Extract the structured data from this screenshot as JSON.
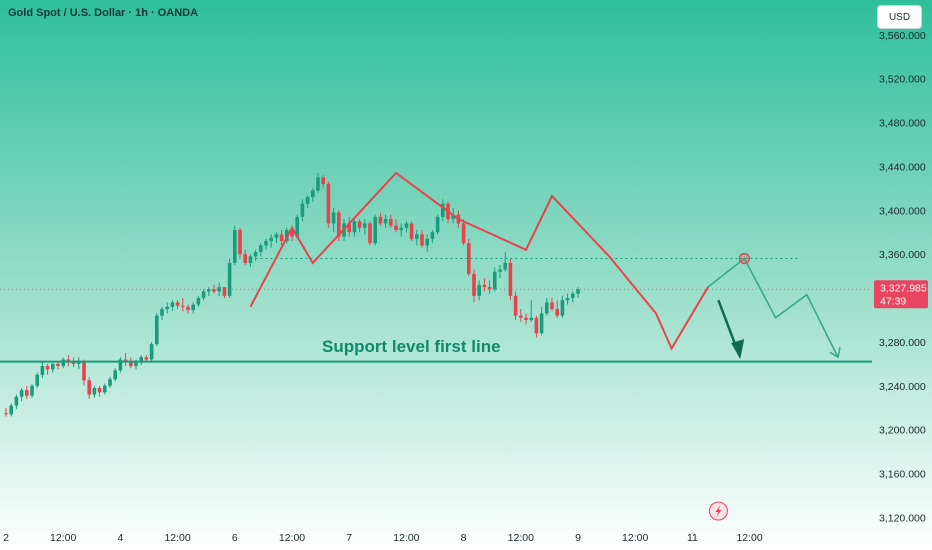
{
  "header": {
    "title": "Gold Spot / U.S. Dollar · 1h · OANDA"
  },
  "currency_button": {
    "label": "USD"
  },
  "price_tag": {
    "price": "3,327.985",
    "countdown": "47:39",
    "bg_color": "#e84560"
  },
  "annotation": {
    "support_text": "Support level first line"
  },
  "colors": {
    "bg_top": "#2ebf9a",
    "bg_bottom": "#ffffff",
    "up": "#1a9c7c",
    "down": "#e8424f",
    "zigzag_red": "#e8424f",
    "projection": "#3aa88e",
    "support_line": "#1a9c7c"
  },
  "icons": {
    "lightning": "lightning-icon"
  },
  "chart_data": {
    "type": "candlestick",
    "title": "Gold Spot / U.S. Dollar · 1h · OANDA",
    "y_ticks": [
      "3,560.000",
      "3,520.000",
      "3,480.000",
      "3,440.000",
      "3,400.000",
      "3,360.000",
      "3,280.000",
      "3,240.000",
      "3,200.000",
      "3,160.000",
      "3,120.000"
    ],
    "y_tick_values": [
      3560,
      3520,
      3480,
      3440,
      3400,
      3360,
      3280,
      3240,
      3200,
      3160,
      3120
    ],
    "ylim": [
      3114,
      3568
    ],
    "x_ticks": [
      "2",
      "12:00",
      "4",
      "12:00",
      "6",
      "12:00",
      "7",
      "12:00",
      "8",
      "12:00",
      "9",
      "12:00",
      "11",
      "12:00"
    ],
    "x_tick_index": [
      0,
      11,
      22,
      33,
      44,
      55,
      66,
      77,
      88,
      99,
      110,
      121,
      132,
      143
    ],
    "last_price": 3327.985,
    "support_level": 3262,
    "dotted_resistance": 3356,
    "candles": [
      [
        3215,
        3220,
        3212,
        3214
      ],
      [
        3214,
        3224,
        3212,
        3222
      ],
      [
        3222,
        3232,
        3219,
        3230
      ],
      [
        3230,
        3238,
        3226,
        3236
      ],
      [
        3236,
        3240,
        3228,
        3231
      ],
      [
        3231,
        3242,
        3229,
        3240
      ],
      [
        3240,
        3252,
        3238,
        3250
      ],
      [
        3250,
        3262,
        3247,
        3258
      ],
      [
        3258,
        3260,
        3250,
        3255
      ],
      [
        3255,
        3262,
        3252,
        3260
      ],
      [
        3260,
        3263,
        3255,
        3258
      ],
      [
        3258,
        3266,
        3256,
        3264
      ],
      [
        3264,
        3268,
        3258,
        3262
      ],
      [
        3262,
        3266,
        3257,
        3260
      ],
      [
        3260,
        3266,
        3255,
        3263
      ],
      [
        3263,
        3264,
        3240,
        3245
      ],
      [
        3245,
        3248,
        3228,
        3232
      ],
      [
        3232,
        3240,
        3229,
        3238
      ],
      [
        3238,
        3240,
        3230,
        3234
      ],
      [
        3234,
        3242,
        3232,
        3240
      ],
      [
        3240,
        3248,
        3238,
        3246
      ],
      [
        3246,
        3256,
        3244,
        3254
      ],
      [
        3254,
        3266,
        3252,
        3264
      ],
      [
        3264,
        3270,
        3258,
        3262
      ],
      [
        3262,
        3266,
        3256,
        3258
      ],
      [
        3258,
        3264,
        3255,
        3262
      ],
      [
        3262,
        3268,
        3259,
        3266
      ],
      [
        3266,
        3268,
        3262,
        3264
      ],
      [
        3264,
        3280,
        3262,
        3278
      ],
      [
        3278,
        3306,
        3276,
        3304
      ],
      [
        3304,
        3312,
        3300,
        3310
      ],
      [
        3310,
        3316,
        3306,
        3312
      ],
      [
        3312,
        3318,
        3308,
        3316
      ],
      [
        3316,
        3318,
        3310,
        3313
      ],
      [
        3313,
        3320,
        3308,
        3312
      ],
      [
        3312,
        3314,
        3306,
        3309
      ],
      [
        3309,
        3316,
        3306,
        3314
      ],
      [
        3314,
        3322,
        3312,
        3320
      ],
      [
        3320,
        3328,
        3318,
        3326
      ],
      [
        3326,
        3330,
        3322,
        3328
      ],
      [
        3328,
        3332,
        3324,
        3326
      ],
      [
        3326,
        3334,
        3322,
        3330
      ],
      [
        3330,
        3328,
        3320,
        3322
      ],
      [
        3322,
        3356,
        3320,
        3352
      ],
      [
        3352,
        3386,
        3350,
        3382
      ],
      [
        3382,
        3384,
        3356,
        3360
      ],
      [
        3360,
        3364,
        3350,
        3352
      ],
      [
        3352,
        3360,
        3348,
        3358
      ],
      [
        3358,
        3364,
        3354,
        3362
      ],
      [
        3362,
        3370,
        3358,
        3368
      ],
      [
        3368,
        3374,
        3364,
        3372
      ],
      [
        3372,
        3378,
        3366,
        3375
      ],
      [
        3375,
        3380,
        3370,
        3378
      ],
      [
        3378,
        3382,
        3368,
        3372
      ],
      [
        3372,
        3384,
        3370,
        3382
      ],
      [
        3382,
        3386,
        3372,
        3376
      ],
      [
        3376,
        3396,
        3374,
        3394
      ],
      [
        3394,
        3410,
        3390,
        3406
      ],
      [
        3406,
        3414,
        3402,
        3412
      ],
      [
        3412,
        3420,
        3408,
        3418
      ],
      [
        3418,
        3434,
        3416,
        3430
      ],
      [
        3430,
        3432,
        3420,
        3424
      ],
      [
        3424,
        3426,
        3384,
        3388
      ],
      [
        3388,
        3402,
        3380,
        3398
      ],
      [
        3398,
        3400,
        3372,
        3376
      ],
      [
        3376,
        3392,
        3372,
        3388
      ],
      [
        3388,
        3394,
        3376,
        3380
      ],
      [
        3380,
        3392,
        3376,
        3390
      ],
      [
        3390,
        3392,
        3380,
        3384
      ],
      [
        3384,
        3392,
        3378,
        3388
      ],
      [
        3388,
        3390,
        3368,
        3370
      ],
      [
        3370,
        3396,
        3368,
        3394
      ],
      [
        3394,
        3398,
        3386,
        3388
      ],
      [
        3388,
        3396,
        3384,
        3392
      ],
      [
        3392,
        3396,
        3384,
        3386
      ],
      [
        3386,
        3392,
        3380,
        3382
      ],
      [
        3382,
        3388,
        3376,
        3384
      ],
      [
        3384,
        3390,
        3380,
        3388
      ],
      [
        3388,
        3390,
        3372,
        3374
      ],
      [
        3374,
        3382,
        3368,
        3378
      ],
      [
        3378,
        3382,
        3366,
        3368
      ],
      [
        3368,
        3378,
        3362,
        3374
      ],
      [
        3374,
        3382,
        3370,
        3380
      ],
      [
        3380,
        3396,
        3378,
        3394
      ],
      [
        3394,
        3410,
        3390,
        3406
      ],
      [
        3406,
        3408,
        3388,
        3392
      ],
      [
        3392,
        3402,
        3388,
        3396
      ],
      [
        3396,
        3400,
        3384,
        3388
      ],
      [
        3388,
        3392,
        3368,
        3370
      ],
      [
        3370,
        3374,
        3340,
        3342
      ],
      [
        3342,
        3346,
        3316,
        3322
      ],
      [
        3322,
        3336,
        3318,
        3332
      ],
      [
        3332,
        3338,
        3326,
        3330
      ],
      [
        3330,
        3336,
        3324,
        3328
      ],
      [
        3328,
        3348,
        3326,
        3344
      ],
      [
        3344,
        3350,
        3338,
        3346
      ],
      [
        3346,
        3362,
        3344,
        3352
      ],
      [
        3352,
        3356,
        3318,
        3322
      ],
      [
        3322,
        3326,
        3300,
        3304
      ],
      [
        3304,
        3310,
        3298,
        3302
      ],
      [
        3302,
        3306,
        3296,
        3300
      ],
      [
        3300,
        3318,
        3298,
        3302
      ],
      [
        3302,
        3304,
        3284,
        3288
      ],
      [
        3288,
        3312,
        3286,
        3306
      ],
      [
        3306,
        3320,
        3304,
        3316
      ],
      [
        3316,
        3320,
        3308,
        3310
      ],
      [
        3310,
        3318,
        3302,
        3304
      ],
      [
        3304,
        3322,
        3302,
        3318
      ],
      [
        3318,
        3324,
        3314,
        3320
      ],
      [
        3320,
        3326,
        3316,
        3324
      ],
      [
        3324,
        3330,
        3320,
        3328
      ]
    ]
  }
}
